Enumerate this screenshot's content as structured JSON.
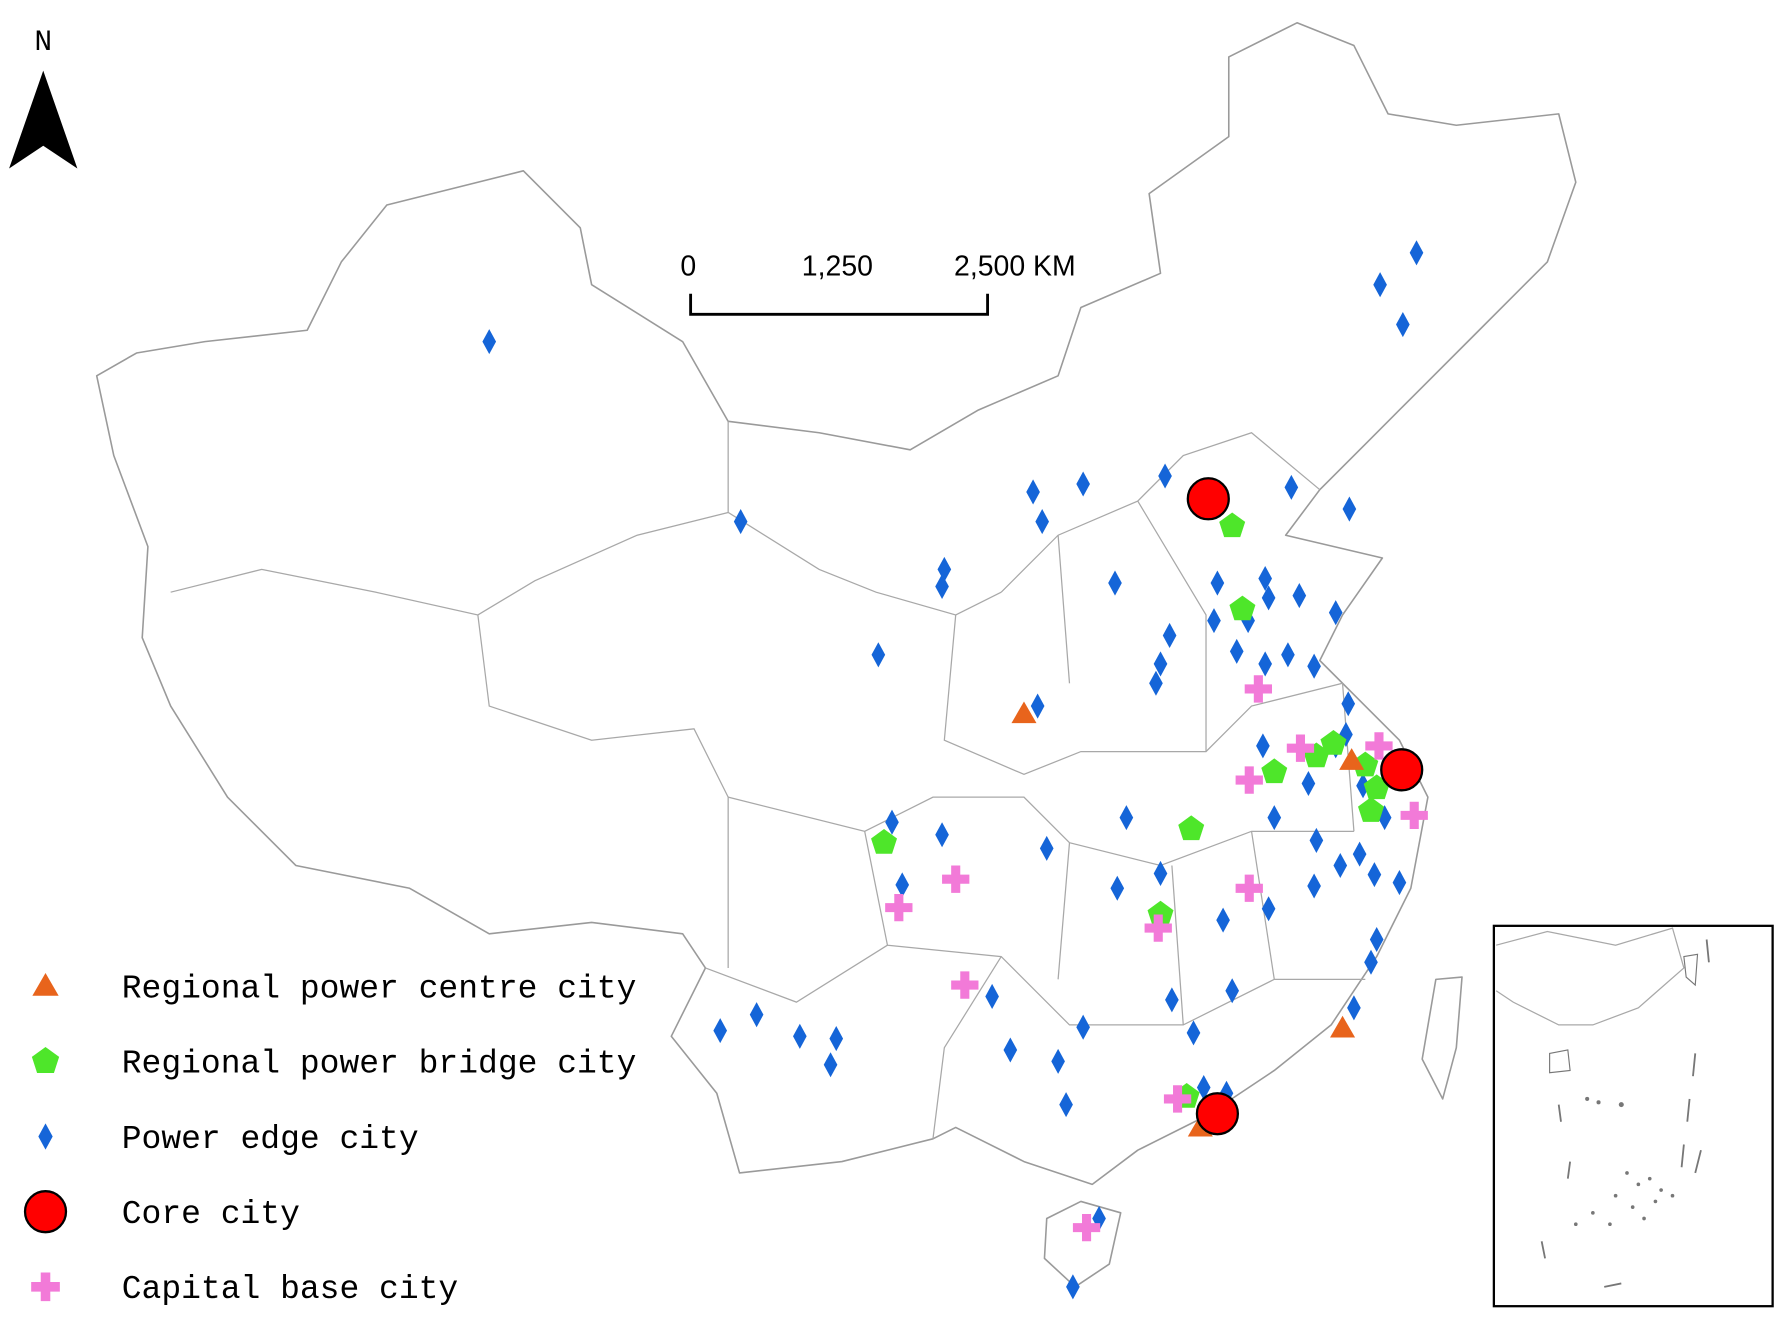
{
  "north_arrow": {
    "label": "N"
  },
  "scale_bar": {
    "labels": [
      "0",
      "1,250",
      "2,500 KM"
    ]
  },
  "legend": {
    "items": [
      "Regional power centre city",
      "Regional power bridge city",
      "Power edge city",
      "Core city",
      "Capital base city"
    ]
  }
}
